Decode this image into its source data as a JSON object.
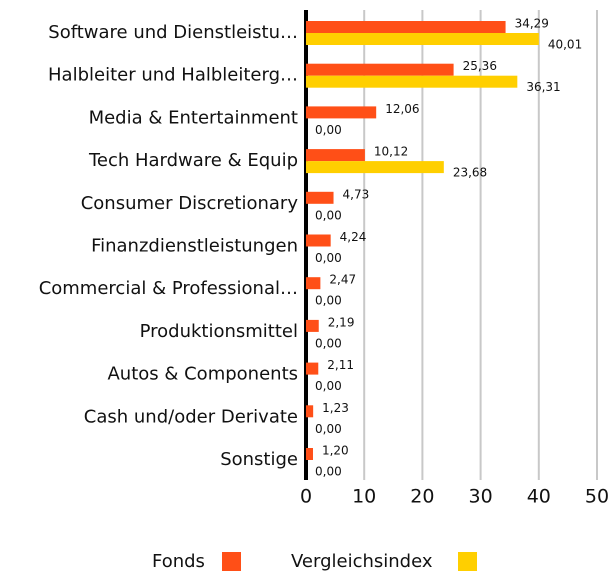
{
  "chart_data": {
    "type": "bar",
    "orientation": "horizontal",
    "categories": [
      "Software und Dienstleistu…",
      "Halbleiter und Halbleiterg…",
      "Media & Entertainment",
      "Tech Hardware & Equip",
      "Consumer Discretionary",
      "Finanzdienstleistungen",
      "Commercial & Professional…",
      "Produktionsmittel",
      "Autos & Components",
      "Cash und/oder Derivate",
      "Sonstige"
    ],
    "series": [
      {
        "name": "Fonds",
        "color": "#ff4f17",
        "values": [
          34.29,
          25.36,
          12.06,
          10.12,
          4.73,
          4.24,
          2.47,
          2.19,
          2.11,
          1.23,
          1.2
        ],
        "value_labels": [
          "34,29",
          "25,36",
          "12,06",
          "10,12",
          "4,73",
          "4,24",
          "2,47",
          "2,19",
          "2,11",
          "1,23",
          "1,20"
        ]
      },
      {
        "name": "Vergleichsindex",
        "color": "#ffcf00",
        "values": [
          40.01,
          36.31,
          0,
          23.68,
          0,
          0,
          0,
          0,
          0,
          0,
          0
        ],
        "value_labels": [
          "40,01",
          "36,31",
          "0,00",
          "23,68",
          "0,00",
          "0,00",
          "0,00",
          "0,00",
          "0,00",
          "0,00",
          "0,00"
        ]
      }
    ],
    "xlim": [
      0,
      50
    ],
    "xticks": [
      0,
      10,
      20,
      30,
      40,
      50
    ],
    "grid": true,
    "legend": "bottom"
  }
}
